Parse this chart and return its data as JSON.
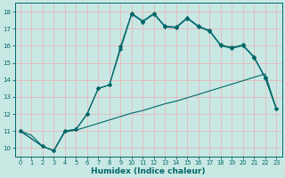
{
  "xlabel": "Humidex (Indice chaleur)",
  "background_color": "#c8e8e4",
  "grid_color": "#e8b8b8",
  "line_color": "#006868",
  "xlim": [
    -0.5,
    23.5
  ],
  "ylim": [
    9.5,
    18.5
  ],
  "xticks": [
    0,
    1,
    2,
    3,
    4,
    5,
    6,
    7,
    8,
    9,
    10,
    11,
    12,
    13,
    14,
    15,
    16,
    17,
    18,
    19,
    20,
    21,
    22,
    23
  ],
  "yticks": [
    10,
    11,
    12,
    13,
    14,
    15,
    16,
    17,
    18
  ],
  "curve_bottom_x": [
    0,
    1,
    2,
    3,
    4,
    5,
    6,
    7,
    8,
    9,
    10,
    11,
    12,
    13,
    14,
    15,
    16,
    17,
    18,
    19,
    20,
    21,
    22,
    23
  ],
  "curve_bottom_y": [
    11.0,
    10.75,
    10.1,
    9.85,
    10.95,
    11.05,
    11.25,
    11.45,
    11.65,
    11.85,
    12.05,
    12.2,
    12.4,
    12.6,
    12.75,
    12.95,
    13.15,
    13.35,
    13.55,
    13.75,
    13.95,
    14.15,
    14.35,
    12.3
  ],
  "curve_mid_x": [
    0,
    2,
    3,
    4,
    5,
    6,
    7,
    8,
    9,
    10,
    11,
    12,
    13,
    14,
    15,
    16,
    17,
    18,
    19,
    20,
    21,
    22,
    23
  ],
  "curve_mid_y": [
    11.0,
    10.1,
    9.85,
    11.0,
    11.1,
    12.0,
    13.5,
    13.7,
    15.8,
    17.85,
    17.4,
    17.85,
    17.1,
    17.05,
    17.6,
    17.1,
    16.85,
    16.0,
    15.85,
    16.0,
    15.3,
    14.1,
    12.3
  ],
  "curve_top_x": [
    0,
    2,
    3,
    4,
    5,
    6,
    7,
    8,
    9,
    10,
    11,
    12,
    13,
    14,
    15,
    16,
    17,
    18,
    19,
    20,
    21,
    22,
    23
  ],
  "curve_top_y": [
    11.0,
    10.1,
    9.85,
    11.0,
    11.1,
    12.0,
    13.5,
    13.7,
    15.95,
    17.9,
    17.45,
    17.9,
    17.15,
    17.1,
    17.65,
    17.15,
    16.9,
    16.05,
    15.9,
    16.05,
    15.35,
    14.15,
    12.3
  ]
}
